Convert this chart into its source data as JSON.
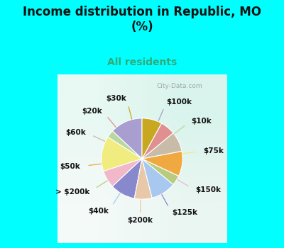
{
  "title": "Income distribution in Republic, MO\n(%)",
  "subtitle": "All residents",
  "background_color": "#00FFFF",
  "watermark": "City-Data.com",
  "labels": [
    "$100k",
    "$10k",
    "$75k",
    "$150k",
    "$125k",
    "$200k",
    "$40k",
    "> $200k",
    "$50k",
    "$60k",
    "$20k",
    "$30k"
  ],
  "values": [
    13,
    3,
    14,
    7,
    10,
    7,
    10,
    4,
    10,
    8,
    6,
    8
  ],
  "colors": [
    "#a89ed0",
    "#b8d8a0",
    "#f0ec80",
    "#f0b8c8",
    "#8888cc",
    "#e8c8a8",
    "#a8c8f0",
    "#b8cc80",
    "#f0a840",
    "#c8bca8",
    "#e09090",
    "#c8a820"
  ],
  "startangle": 90,
  "label_fontsize": 7.5,
  "title_fontsize": 12,
  "subtitle_fontsize": 10,
  "title_color": "#111111",
  "subtitle_color": "#33aa77",
  "label_color": "#111111",
  "chart_bg_left": "#e8f8f0",
  "chart_bg_right": "#d0f0e8"
}
